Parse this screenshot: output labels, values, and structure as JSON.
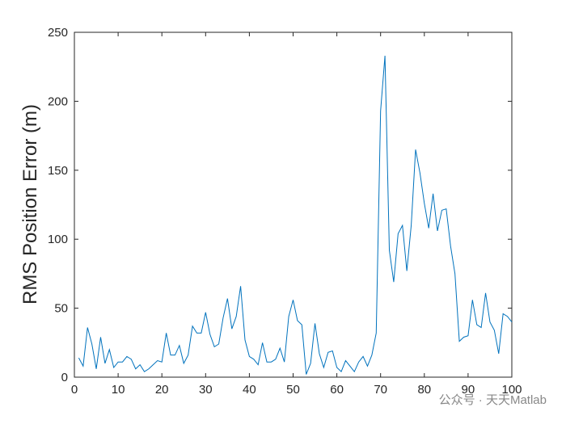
{
  "chart_data": {
    "type": "line",
    "ylabel": "RMS Position Error (m)",
    "watermark": "公众号 · 天天Matlab",
    "x": [
      1,
      2,
      3,
      4,
      5,
      6,
      7,
      8,
      9,
      10,
      11,
      12,
      13,
      14,
      15,
      16,
      17,
      18,
      19,
      20,
      21,
      22,
      23,
      24,
      25,
      26,
      27,
      28,
      29,
      30,
      31,
      32,
      33,
      34,
      35,
      36,
      37,
      38,
      39,
      40,
      41,
      42,
      43,
      44,
      45,
      46,
      47,
      48,
      49,
      50,
      51,
      52,
      53,
      54,
      55,
      56,
      57,
      58,
      59,
      60,
      61,
      62,
      63,
      64,
      65,
      66,
      67,
      68,
      69,
      70,
      71,
      72,
      73,
      74,
      75,
      76,
      77,
      78,
      79,
      80,
      81,
      82,
      83,
      84,
      85,
      86,
      87,
      88,
      89,
      90,
      91,
      92,
      93,
      94,
      95,
      96,
      97,
      98,
      99,
      100
    ],
    "series": [
      {
        "color": "#0072BD",
        "values": [
          14,
          8,
          36,
          24,
          6,
          29,
          10,
          20,
          7,
          11,
          11,
          15,
          13,
          6,
          9,
          4,
          6,
          9,
          12,
          11,
          32,
          16,
          16,
          23,
          10,
          16,
          37,
          32,
          32,
          47,
          31,
          22,
          24,
          43,
          57,
          35,
          44,
          66,
          27,
          15,
          13,
          9,
          25,
          11,
          11,
          13,
          21,
          11,
          44,
          56,
          41,
          38,
          2,
          10,
          39,
          17,
          7,
          18,
          19,
          7,
          4,
          12,
          8,
          4,
          11,
          15,
          8,
          16,
          32,
          193,
          233,
          92,
          69,
          104,
          110,
          77,
          110,
          165,
          148,
          126,
          108,
          133,
          106,
          121,
          122,
          95,
          75,
          26,
          29,
          30,
          56,
          38,
          36,
          61,
          40,
          34,
          17,
          46,
          44,
          40
        ]
      }
    ],
    "xlim": [
      0,
      100
    ],
    "xticks": [
      0,
      10,
      20,
      30,
      40,
      50,
      60,
      70,
      80,
      90,
      100
    ],
    "ylim": [
      0,
      250
    ],
    "yticks": [
      0,
      50,
      100,
      150,
      200,
      250
    ]
  }
}
